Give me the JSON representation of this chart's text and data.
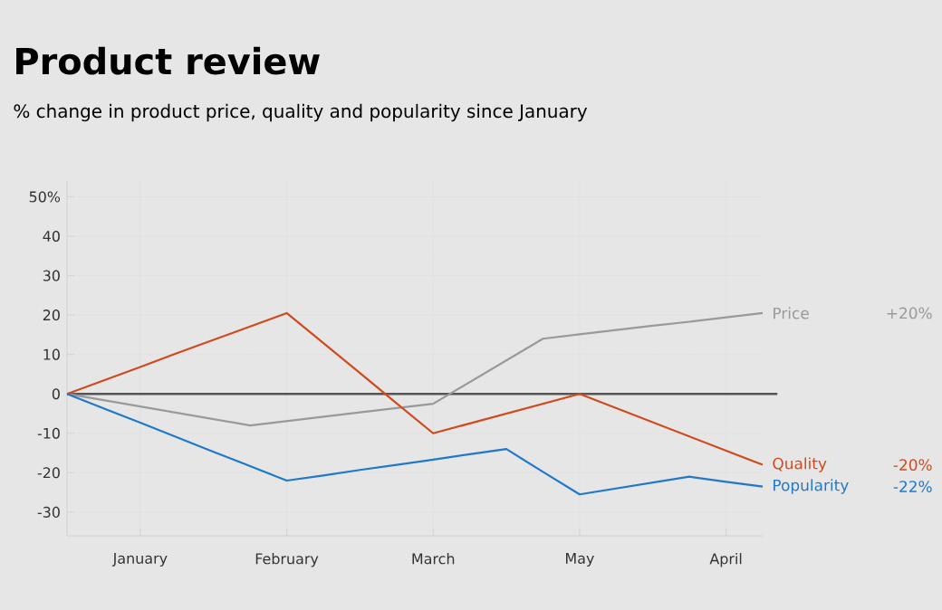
{
  "chart_data": {
    "type": "line",
    "title": "Product review",
    "subtitle": "% change in product price, quality and popularity since January",
    "categories": [
      null,
      null,
      "January",
      null,
      null,
      null,
      "February",
      null,
      null,
      null,
      "March",
      null,
      null,
      null,
      "May",
      null,
      null,
      null,
      "April",
      null
    ],
    "ylim": [
      -36,
      54
    ],
    "yticks": [
      -30,
      -20,
      -10,
      0,
      10,
      20,
      30,
      40,
      {
        "value": 50,
        "label": "50%"
      }
    ],
    "grid": true,
    "marker": "none",
    "line_style": "solid",
    "series": [
      {
        "name": "Price",
        "color": "#999999",
        "values": [
          0,
          -1.6,
          -3.2,
          -4.8,
          -6.4,
          -8,
          -6.9,
          -5.8,
          -4.7,
          -3.6,
          -2.5,
          3,
          8.5,
          14,
          15.1,
          16.2,
          17.3,
          18.3,
          19.4,
          20.5
        ]
      },
      {
        "name": "Quality",
        "color": "#d04a1e",
        "values": [
          0,
          3.4,
          6.8,
          10.3,
          13.7,
          17.1,
          20.5,
          12.9,
          5.3,
          -2.4,
          -10,
          -7.5,
          -5,
          -2.5,
          0,
          -3.6,
          -7.2,
          -10.8,
          -14.4,
          -18
        ]
      },
      {
        "name": "Popularity",
        "color": "#1f78c8",
        "values": [
          0,
          -3.7,
          -7.3,
          -11,
          -14.7,
          -18.3,
          -22,
          -20.7,
          -19.3,
          -18,
          -16.7,
          -15.3,
          -14,
          -19.8,
          -25.5,
          -24,
          -22.5,
          -21,
          -22.3,
          -23.5
        ]
      }
    ],
    "annotations": [
      "+20%",
      "-20%",
      "-22%"
    ],
    "ref_lines": [
      {
        "axis": "y",
        "value": 0,
        "color": "#555555"
      }
    ]
  }
}
